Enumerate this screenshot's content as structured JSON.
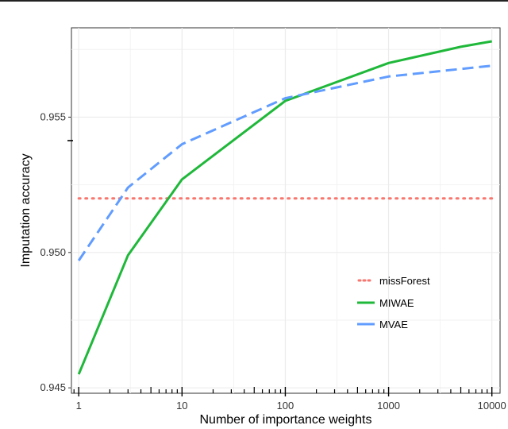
{
  "chart_data": {
    "type": "line",
    "xscale": "log10",
    "xlabel": "Number of importance weights",
    "ylabel": "Imputation accuracy",
    "xlim": [
      0.85,
      12000
    ],
    "ylim": [
      0.9448,
      0.9583
    ],
    "x_ticks": [
      1,
      10,
      100,
      1000,
      10000
    ],
    "x_tick_labels": [
      "1",
      "10",
      "100",
      "1000",
      "10000"
    ],
    "y_ticks": [
      0.945,
      0.95,
      0.955
    ],
    "y_tick_labels": [
      "0.945",
      "0.950",
      "0.955"
    ],
    "grid": true,
    "legend_position": "inside-lower-right",
    "series": [
      {
        "name": "missForest",
        "style": "dotted",
        "color": "#f8766d",
        "x": [
          1,
          10000
        ],
        "y": [
          0.952,
          0.952
        ]
      },
      {
        "name": "MIWAE",
        "style": "solid",
        "color": "#1fb83a",
        "x": [
          1,
          3,
          10,
          100,
          1000,
          5000,
          10000
        ],
        "y": [
          0.9455,
          0.9499,
          0.9527,
          0.9556,
          0.957,
          0.9576,
          0.9578
        ]
      },
      {
        "name": "MVAE",
        "style": "dashed",
        "color": "#619cff",
        "x": [
          1,
          3,
          10,
          100,
          1000,
          10000
        ],
        "y": [
          0.9497,
          0.9524,
          0.954,
          0.9557,
          0.9565,
          0.9569
        ]
      }
    ]
  }
}
